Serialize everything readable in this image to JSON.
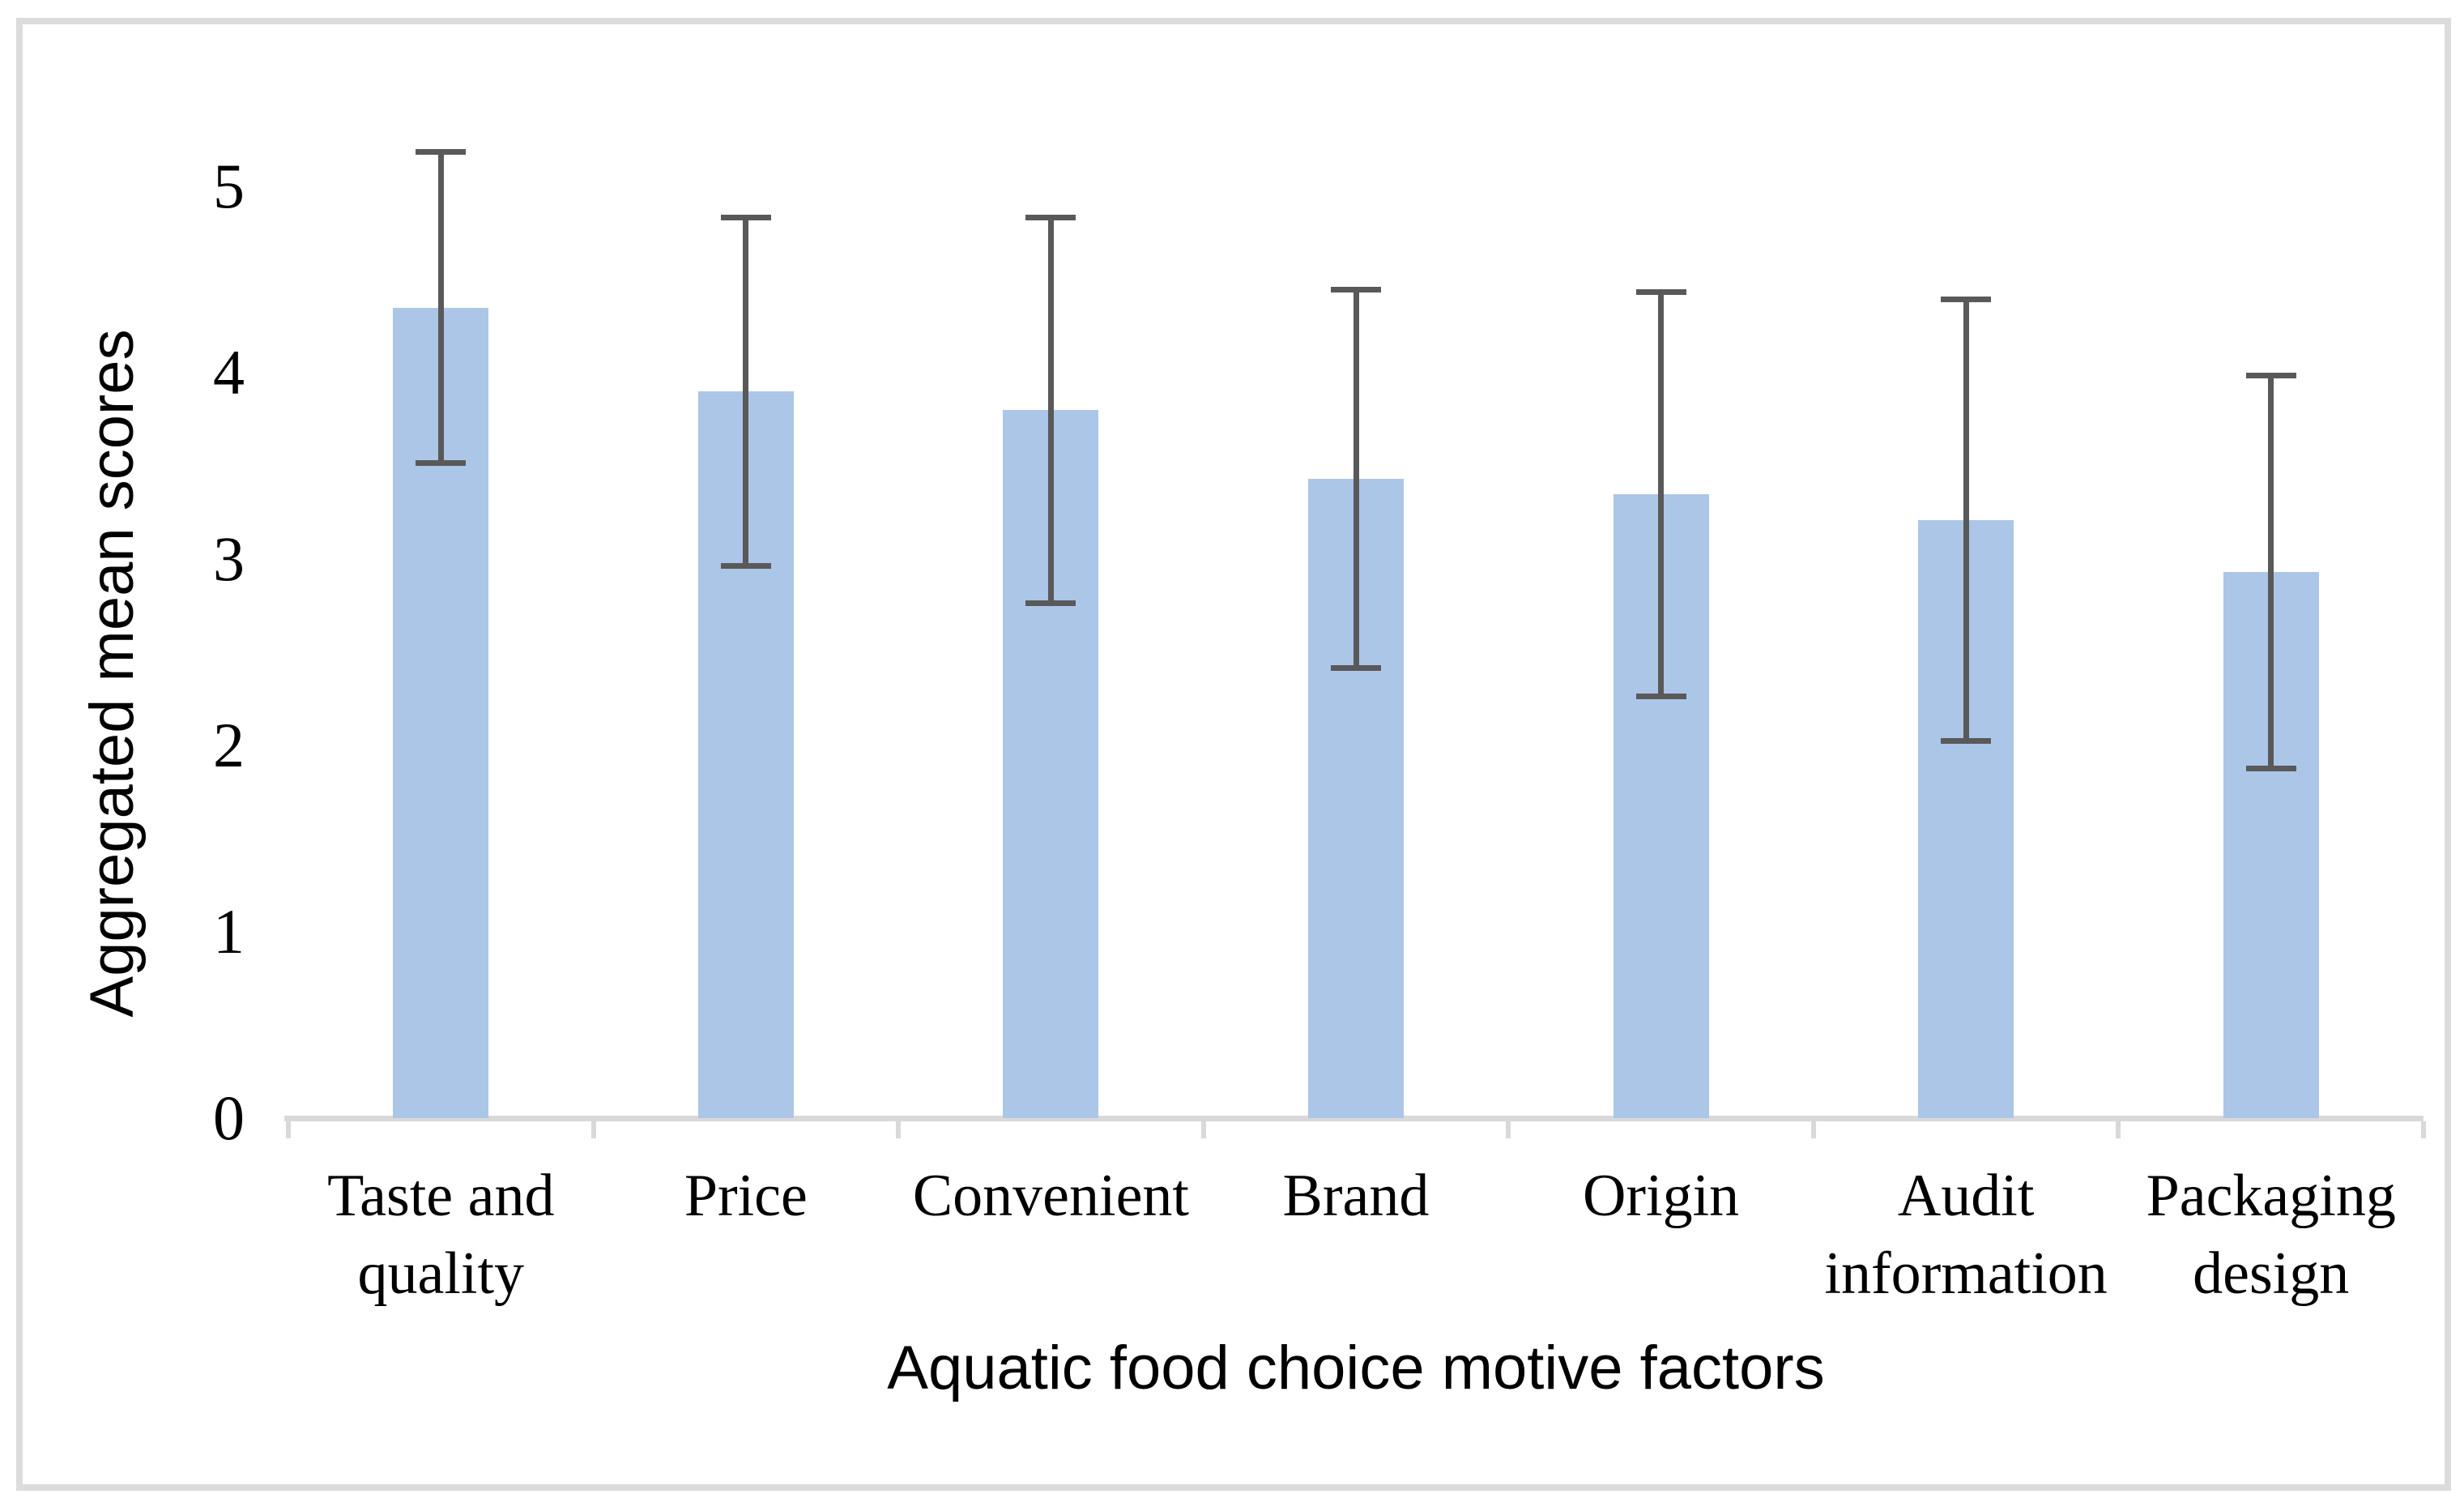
{
  "chart_data": {
    "type": "bar",
    "title": "",
    "xlabel": "Aquatic food choice motive factors",
    "ylabel": "Aggregated mean scores",
    "categories": [
      "Taste and quality",
      "Price",
      "Convenient",
      "Brand",
      "Origin",
      "Audit information",
      "Packaging design"
    ],
    "values": [
      4.35,
      3.9,
      3.8,
      3.43,
      3.35,
      3.21,
      2.93
    ],
    "error_bars": {
      "low": [
        3.5,
        2.95,
        2.75,
        2.4,
        2.25,
        2.01,
        1.86
      ],
      "high": [
        5.2,
        4.85,
        4.85,
        4.46,
        4.45,
        4.41,
        4.0
      ]
    },
    "yticks": [
      0,
      1,
      2,
      3,
      4,
      5
    ],
    "ylim": [
      0,
      5.46
    ],
    "grid": false,
    "legend": "none",
    "colors": {
      "bar_fill": "#acc6e8",
      "error_bar": "#595959",
      "axis_line": "#d9d9d9",
      "text": "#000000",
      "frame_border": "#dcdcdc"
    }
  }
}
